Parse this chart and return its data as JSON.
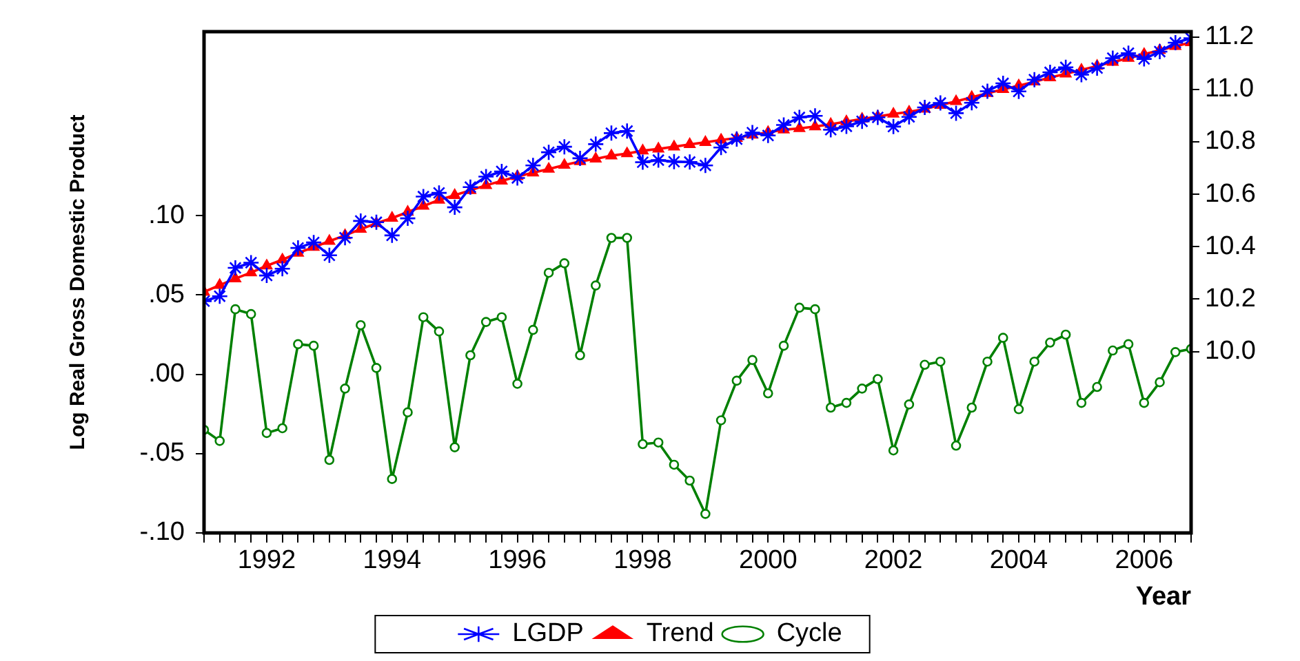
{
  "chart_data": {
    "type": "line",
    "xlabel": "Year",
    "ylabel": "Log Real Gross Domestic Product",
    "x": [
      1991,
      1991.25,
      1991.5,
      1991.75,
      1992,
      1992.25,
      1992.5,
      1992.75,
      1993,
      1993.25,
      1993.5,
      1993.75,
      1994,
      1994.25,
      1994.5,
      1994.75,
      1995,
      1995.25,
      1995.5,
      1995.75,
      1996,
      1996.25,
      1996.5,
      1996.75,
      1997,
      1997.25,
      1997.5,
      1997.75,
      1998,
      1998.25,
      1998.5,
      1998.75,
      1999,
      1999.25,
      1999.5,
      1999.75,
      2000,
      2000.25,
      2000.5,
      2000.75,
      2001,
      2001.25,
      2001.5,
      2001.75,
      2002,
      2002.25,
      2002.5,
      2002.75,
      2003,
      2003.25,
      2003.5,
      2003.75,
      2004,
      2004.25,
      2004.5,
      2004.75,
      2005,
      2005.25,
      2005.5,
      2005.75,
      2006,
      2006.25,
      2006.5,
      2006.75
    ],
    "series": [
      {
        "name": "LGDP",
        "color": "#0000ff",
        "axis": "y2",
        "marker": "cross",
        "values": [
          10.192,
          10.211,
          10.319,
          10.339,
          10.29,
          10.316,
          10.395,
          10.416,
          10.367,
          10.434,
          10.498,
          10.493,
          10.443,
          10.508,
          10.591,
          10.605,
          10.55,
          10.627,
          10.667,
          10.687,
          10.662,
          10.71,
          10.76,
          10.781,
          10.737,
          10.791,
          10.833,
          10.841,
          10.722,
          10.73,
          10.724,
          10.723,
          10.71,
          10.778,
          10.81,
          10.835,
          10.824,
          10.864,
          10.893,
          10.899,
          10.846,
          10.859,
          10.878,
          10.893,
          10.858,
          10.895,
          10.931,
          10.948,
          10.909,
          10.949,
          10.993,
          11.023,
          10.992,
          11.037,
          11.065,
          11.084,
          11.056,
          11.081,
          11.119,
          11.138,
          11.116,
          11.144,
          11.178,
          11.195
        ]
      },
      {
        "name": "Trend",
        "color": "#ff0000",
        "axis": "y2",
        "marker": "triangle",
        "values": [
          10.227,
          10.253,
          10.278,
          10.301,
          10.327,
          10.35,
          10.376,
          10.398,
          10.421,
          10.443,
          10.467,
          10.489,
          10.509,
          10.532,
          10.555,
          10.578,
          10.596,
          10.615,
          10.634,
          10.651,
          10.668,
          10.682,
          10.696,
          10.711,
          10.725,
          10.735,
          10.747,
          10.755,
          10.766,
          10.773,
          10.781,
          10.79,
          10.798,
          10.807,
          10.814,
          10.826,
          10.836,
          10.846,
          10.851,
          10.858,
          10.867,
          10.877,
          10.887,
          10.896,
          10.906,
          10.914,
          10.925,
          10.94,
          10.954,
          10.97,
          10.985,
          11.0,
          11.014,
          11.029,
          11.045,
          11.059,
          11.074,
          11.089,
          11.104,
          11.119,
          11.134,
          11.149,
          11.164,
          11.179
        ]
      },
      {
        "name": "Cycle",
        "color": "#008000",
        "axis": "y",
        "marker": "circle",
        "values": [
          -0.035,
          -0.042,
          0.041,
          0.038,
          -0.037,
          -0.034,
          0.019,
          0.018,
          -0.054,
          -0.009,
          0.031,
          0.004,
          -0.066,
          -0.024,
          0.036,
          0.027,
          -0.046,
          0.012,
          0.033,
          0.036,
          -0.006,
          0.028,
          0.064,
          0.07,
          0.012,
          0.056,
          0.086,
          0.086,
          -0.044,
          -0.043,
          -0.057,
          -0.067,
          -0.088,
          -0.029,
          -0.004,
          0.009,
          -0.012,
          0.018,
          0.042,
          0.041,
          -0.021,
          -0.018,
          -0.009,
          -0.003,
          -0.048,
          -0.019,
          0.006,
          0.008,
          -0.045,
          -0.021,
          0.008,
          0.023,
          -0.022,
          0.008,
          0.02,
          0.025,
          -0.018,
          -0.008,
          0.015,
          0.019,
          -0.018,
          -0.005,
          0.014,
          0.016
        ]
      }
    ],
    "xlim": [
      1991,
      2006.75
    ],
    "xticks": [
      {
        "value": 1991,
        "label": null
      },
      {
        "value": 1991.25,
        "label": null
      },
      {
        "value": 1991.5,
        "label": null
      },
      {
        "value": 1991.75,
        "label": null
      },
      1992,
      {
        "value": 1992.25,
        "label": null
      },
      {
        "value": 1992.5,
        "label": null
      },
      {
        "value": 1992.75,
        "label": null
      },
      {
        "value": 1993,
        "label": null
      },
      {
        "value": 1993.25,
        "label": null
      },
      {
        "value": 1993.5,
        "label": null
      },
      {
        "value": 1993.75,
        "label": null
      },
      1994,
      {
        "value": 1994.25,
        "label": null
      },
      {
        "value": 1994.5,
        "label": null
      },
      {
        "value": 1994.75,
        "label": null
      },
      {
        "value": 1995,
        "label": null
      },
      {
        "value": 1995.25,
        "label": null
      },
      {
        "value": 1995.5,
        "label": null
      },
      {
        "value": 1995.75,
        "label": null
      },
      1996,
      {
        "value": 1996.25,
        "label": null
      },
      {
        "value": 1996.5,
        "label": null
      },
      {
        "value": 1996.75,
        "label": null
      },
      {
        "value": 1997,
        "label": null
      },
      {
        "value": 1997.25,
        "label": null
      },
      {
        "value": 1997.5,
        "label": null
      },
      {
        "value": 1997.75,
        "label": null
      },
      1998,
      {
        "value": 1998.25,
        "label": null
      },
      {
        "value": 1998.5,
        "label": null
      },
      {
        "value": 1998.75,
        "label": null
      },
      {
        "value": 1999,
        "label": null
      },
      {
        "value": 1999.25,
        "label": null
      },
      {
        "value": 1999.5,
        "label": null
      },
      {
        "value": 1999.75,
        "label": null
      },
      2000,
      {
        "value": 2000.25,
        "label": null
      },
      {
        "value": 2000.5,
        "label": null
      },
      {
        "value": 2000.75,
        "label": null
      },
      {
        "value": 2001,
        "label": null
      },
      {
        "value": 2001.25,
        "label": null
      },
      {
        "value": 2001.5,
        "label": null
      },
      {
        "value": 2001.75,
        "label": null
      },
      2002,
      {
        "value": 2002.25,
        "label": null
      },
      {
        "value": 2002.5,
        "label": null
      },
      {
        "value": 2002.75,
        "label": null
      },
      {
        "value": 2003,
        "label": null
      },
      {
        "value": 2003.25,
        "label": null
      },
      {
        "value": 2003.5,
        "label": null
      },
      {
        "value": 2003.75,
        "label": null
      },
      2004,
      {
        "value": 2004.25,
        "label": null
      },
      {
        "value": 2004.5,
        "label": null
      },
      {
        "value": 2004.75,
        "label": null
      },
      {
        "value": 2005,
        "label": null
      },
      {
        "value": 2005.25,
        "label": null
      },
      {
        "value": 2005.5,
        "label": null
      },
      {
        "value": 2005.75,
        "label": null
      },
      2006,
      {
        "value": 2006.25,
        "label": null
      },
      {
        "value": 2006.5,
        "label": null
      },
      {
        "value": 2006.75,
        "label": null
      }
    ],
    "ylim": [
      -0.1,
      0.216
    ],
    "yticks": [
      {
        "value": -0.1,
        "label": "-.10"
      },
      {
        "value": -0.05,
        "label": "-.05"
      },
      {
        "value": 0,
        "label": ".00"
      },
      {
        "value": 0.05,
        "label": ".05"
      },
      {
        "value": 0.1,
        "label": ".10"
      }
    ],
    "y2lim": [
      9.308,
      11.22
    ],
    "y2ticks": [
      {
        "value": 10,
        "label": "10.0"
      },
      10.2,
      10.4,
      10.6,
      10.8,
      {
        "value": 11,
        "label": "11.0"
      },
      11.2
    ],
    "grid": false,
    "legend": "bottom",
    "line_style": "solid"
  }
}
